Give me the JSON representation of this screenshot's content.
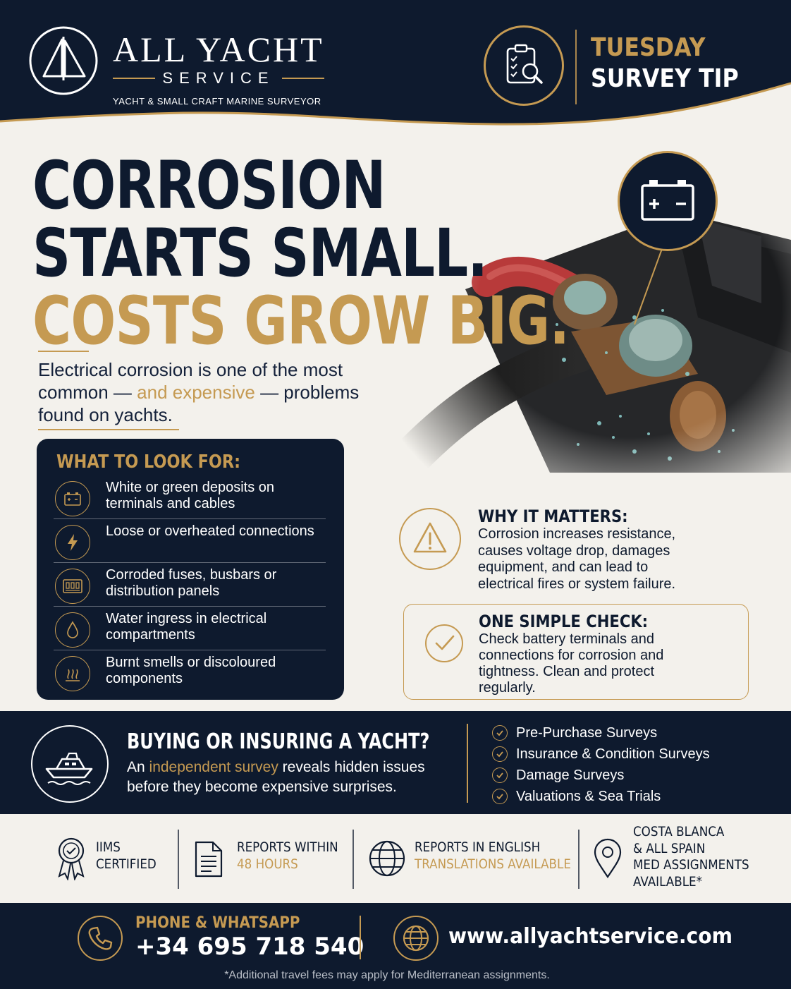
{
  "brand": {
    "name": "ALL YACHT",
    "service": "SERVICE",
    "tagline": "YACHT & SMALL CRAFT MARINE SURVEYOR",
    "logo_icon": "sail-logo-icon"
  },
  "tip": {
    "line1": "TUESDAY",
    "line2": "SURVEY TIP",
    "icon": "clipboard-search-icon"
  },
  "headline": {
    "line1": "CORROSION",
    "line2": "STARTS SMALL.",
    "line3": "COSTS GROW BIG."
  },
  "intro": {
    "before": "Electrical corrosion is one of the most common — ",
    "highlight": "and expensive",
    "after": " — problems found on yachts."
  },
  "photo": {
    "icon": "battery-icon"
  },
  "look_for": {
    "title": "WHAT TO LOOK FOR:",
    "items": [
      {
        "icon": "battery-icon",
        "text": "White or green deposits on terminals and cables"
      },
      {
        "icon": "lightning-icon",
        "text": "Loose or overheated connections"
      },
      {
        "icon": "fuse-panel-icon",
        "text": "Corroded fuses, busbars or distribution panels"
      },
      {
        "icon": "water-drop-icon",
        "text": "Water ingress in electrical compartments"
      },
      {
        "icon": "heat-smell-icon",
        "text": "Burnt smells or discoloured components"
      }
    ]
  },
  "why": {
    "title": "WHY IT MATTERS:",
    "text": "Corrosion increases resistance, causes voltage drop, damages equipment, and can lead to electrical fires or system failure.",
    "icon": "warning-icon"
  },
  "check": {
    "title": "ONE SIMPLE CHECK:",
    "text": "Check battery terminals and connections for corrosion and tightness. Clean and protect regularly.",
    "icon": "checkmark-icon"
  },
  "buying": {
    "title": "BUYING OR INSURING A YACHT?",
    "before": "An ",
    "highlight": "independent survey",
    "after": " reveals hidden issues before they become expensive surprises.",
    "icon": "yacht-icon",
    "services": [
      "Pre-Purchase Surveys",
      "Insurance & Condition Surveys",
      "Damage Surveys",
      "Valuations & Sea Trials"
    ]
  },
  "features": [
    {
      "icon": "award-ribbon-icon",
      "line1": "IIMS",
      "line2": "CERTIFIED"
    },
    {
      "icon": "document-icon",
      "line1": "REPORTS WITHIN",
      "line2": "48 HOURS"
    },
    {
      "icon": "globe-icon",
      "line1": "REPORTS IN ENGLISH",
      "line2": "TRANSLATIONS AVAILABLE"
    },
    {
      "icon": "location-pin-icon",
      "line1": "COSTA BLANCA",
      "line2": "& ALL SPAIN",
      "line3": "MED ASSIGNMENTS",
      "line4": "AVAILABLE*"
    }
  ],
  "contact": {
    "phone_label": "PHONE & WHATSAPP",
    "phone": "+34 695 718 540",
    "website": "www.allyachtservice.com",
    "disclaimer": "*Additional travel fees may apply for Mediterranean assignments."
  },
  "colors": {
    "navy": "#0e1a2e",
    "gold": "#c59a52",
    "cream": "#f3f1ec"
  }
}
